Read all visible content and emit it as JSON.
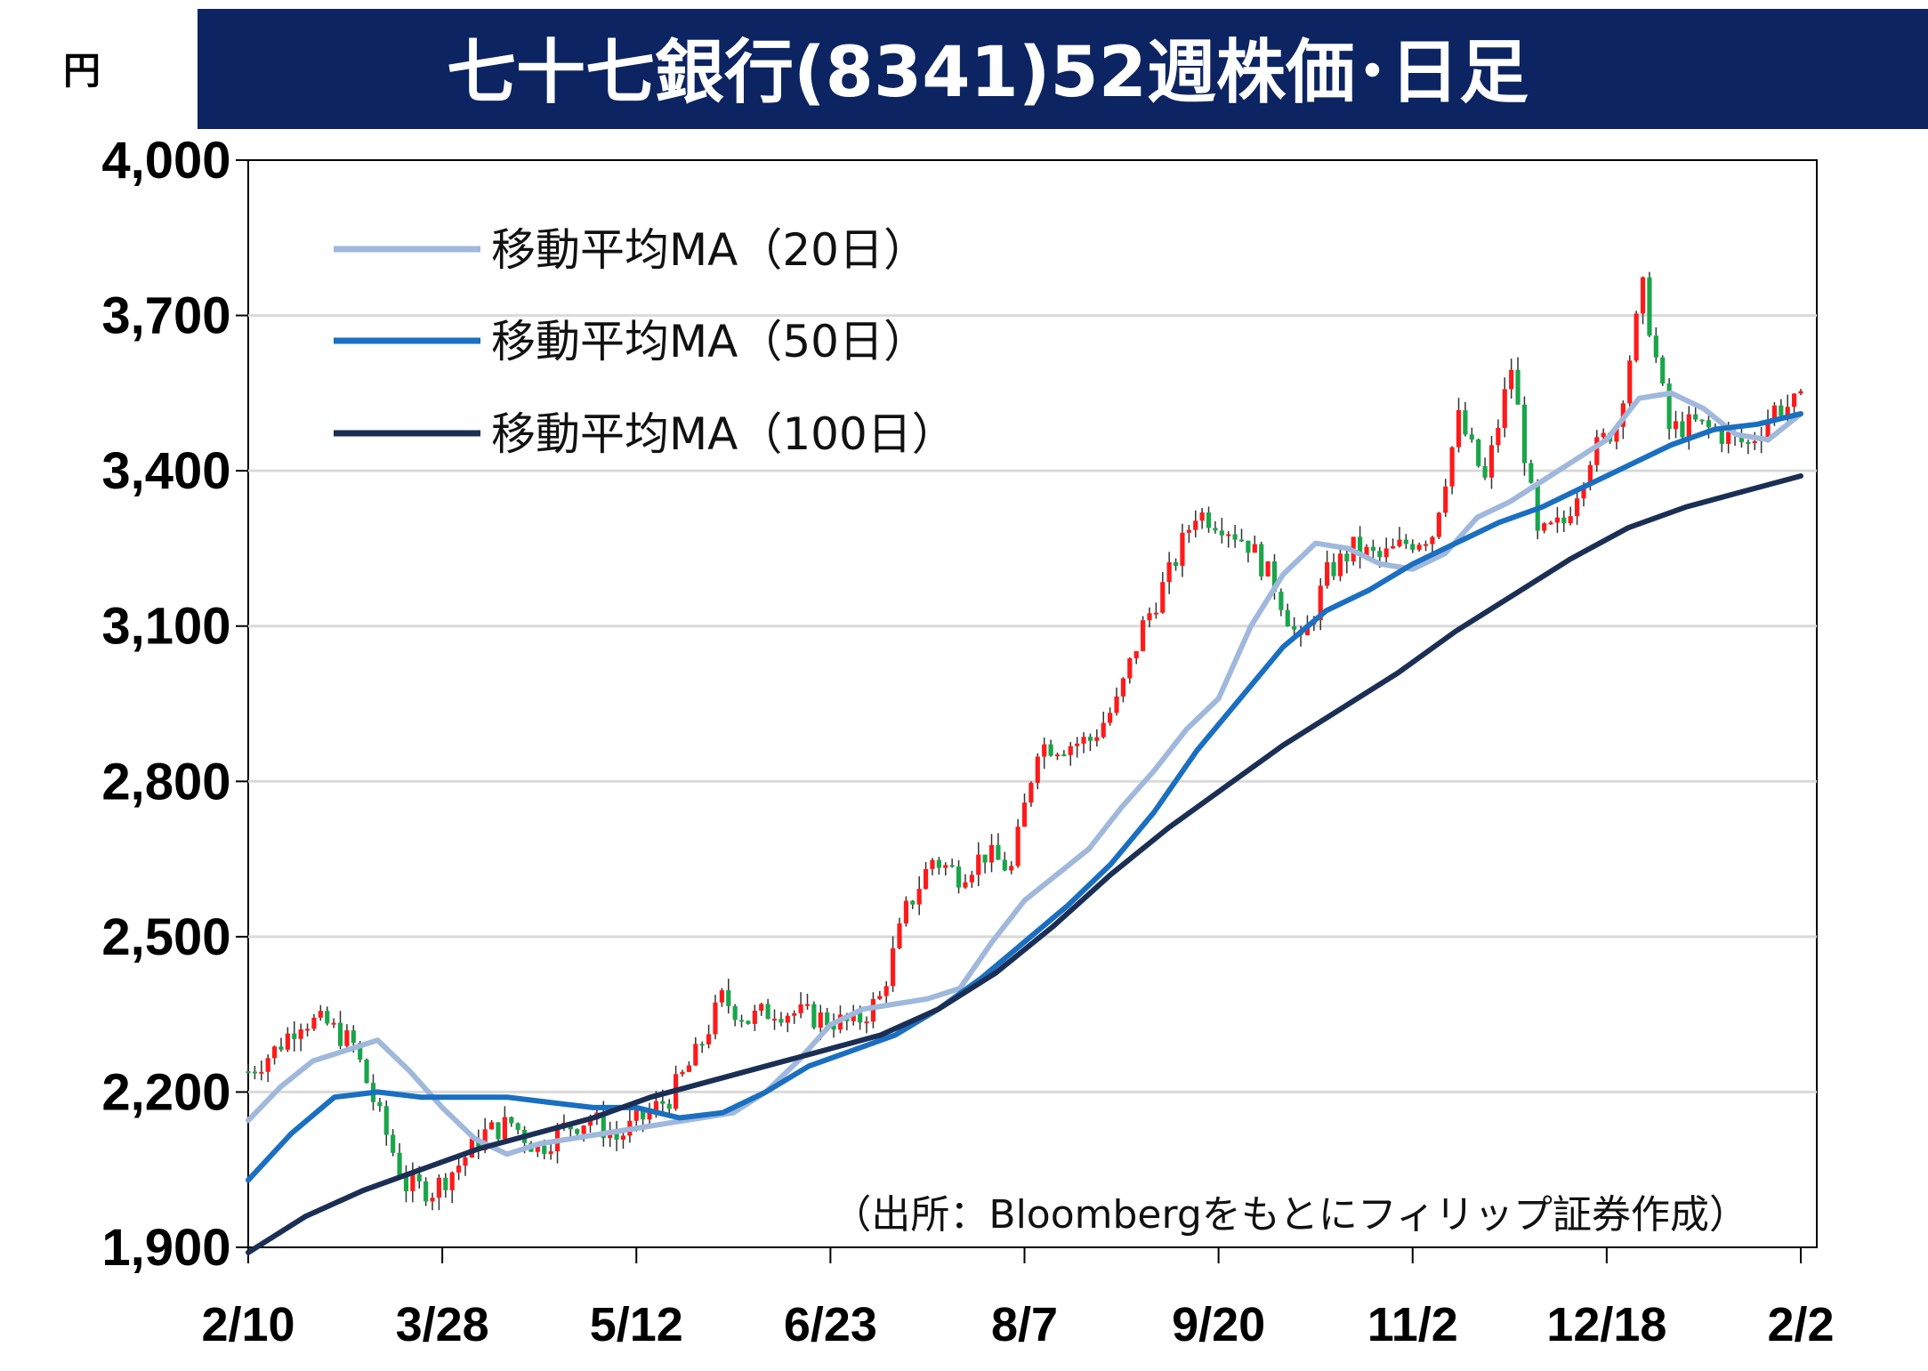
{
  "chart_data": {
    "type": "candlestick",
    "title": "七十七銀行(8341)52週株価･日足",
    "unit_label": "円",
    "source_note": "（出所：Bloombergをもとにフィリップ証券作成）",
    "ylim": [
      1900,
      4000
    ],
    "yticks": [
      {
        "value": 1900,
        "label": "1,900"
      },
      {
        "value": 2200,
        "label": "2,200"
      },
      {
        "value": 2500,
        "label": "2,500"
      },
      {
        "value": 2800,
        "label": "2,800"
      },
      {
        "value": 3100,
        "label": "3,100"
      },
      {
        "value": 3400,
        "label": "3,400"
      },
      {
        "value": 3700,
        "label": "3,700"
      },
      {
        "value": 4000,
        "label": "4,000"
      }
    ],
    "xticks": [
      "2/10",
      "3/28",
      "5/12",
      "6/23",
      "8/7",
      "9/20",
      "11/2",
      "12/18",
      "2/2"
    ],
    "grid": true,
    "legend_position": "top-left",
    "colors": {
      "title_bg": "#0c2461",
      "up_candle": "#ff1a1a",
      "down_candle": "#19a64a",
      "ma20": "#9fb8dc",
      "ma50": "#1a6fc1",
      "ma100": "#1b2f55",
      "grid": "#d9d9d9"
    },
    "candles_weekly_close": [
      2240,
      2280,
      2340,
      2330,
      2290,
      2150,
      2020,
      2010,
      2060,
      2120,
      2140,
      2090,
      2130,
      2150,
      2110,
      2150,
      2190,
      2270,
      2380,
      2340,
      2360,
      2350,
      2340,
      2330,
      2380,
      2550,
      2650,
      2620,
      2660,
      2630,
      2870,
      2870,
      2880,
      2950,
      3100,
      3200,
      3320,
      3300,
      3260,
      3180,
      3060,
      3200,
      3250,
      3230,
      3260,
      3280,
      3500,
      3380,
      3600,
      3270,
      3300,
      3430,
      3490,
      3750,
      3480,
      3490,
      3470,
      3450,
      3520,
      3530
    ],
    "series": [
      {
        "name": "移動平均MA（20日）",
        "values": [
          2145,
          2210,
          2260,
          2280,
          2300,
          2240,
          2170,
          2110,
          2080,
          2100,
          2110,
          2120,
          2130,
          2140,
          2150,
          2160,
          2200,
          2260,
          2330,
          2360,
          2370,
          2380,
          2400,
          2490,
          2570,
          2620,
          2670,
          2750,
          2820,
          2900,
          2960,
          3100,
          3200,
          3260,
          3250,
          3220,
          3210,
          3240,
          3310,
          3340,
          3380,
          3420,
          3460,
          3540,
          3550,
          3520,
          3470,
          3460,
          3510
        ]
      },
      {
        "name": "移動平均MA（50日）",
        "values": [
          2030,
          2120,
          2190,
          2200,
          2190,
          2190,
          2190,
          2180,
          2170,
          2170,
          2150,
          2160,
          2200,
          2250,
          2280,
          2310,
          2360,
          2420,
          2490,
          2560,
          2640,
          2740,
          2860,
          2960,
          3060,
          3130,
          3170,
          3220,
          3260,
          3300,
          3330,
          3370,
          3410,
          3450,
          3480,
          3490,
          3510
        ]
      },
      {
        "name": "移動平均MA（100日）",
        "values": [
          1890,
          1960,
          2010,
          2050,
          2090,
          2120,
          2150,
          2190,
          2220,
          2250,
          2280,
          2310,
          2360,
          2430,
          2520,
          2620,
          2710,
          2790,
          2870,
          2940,
          3010,
          3090,
          3160,
          3230,
          3290,
          3330,
          3360,
          3390
        ]
      }
    ]
  }
}
